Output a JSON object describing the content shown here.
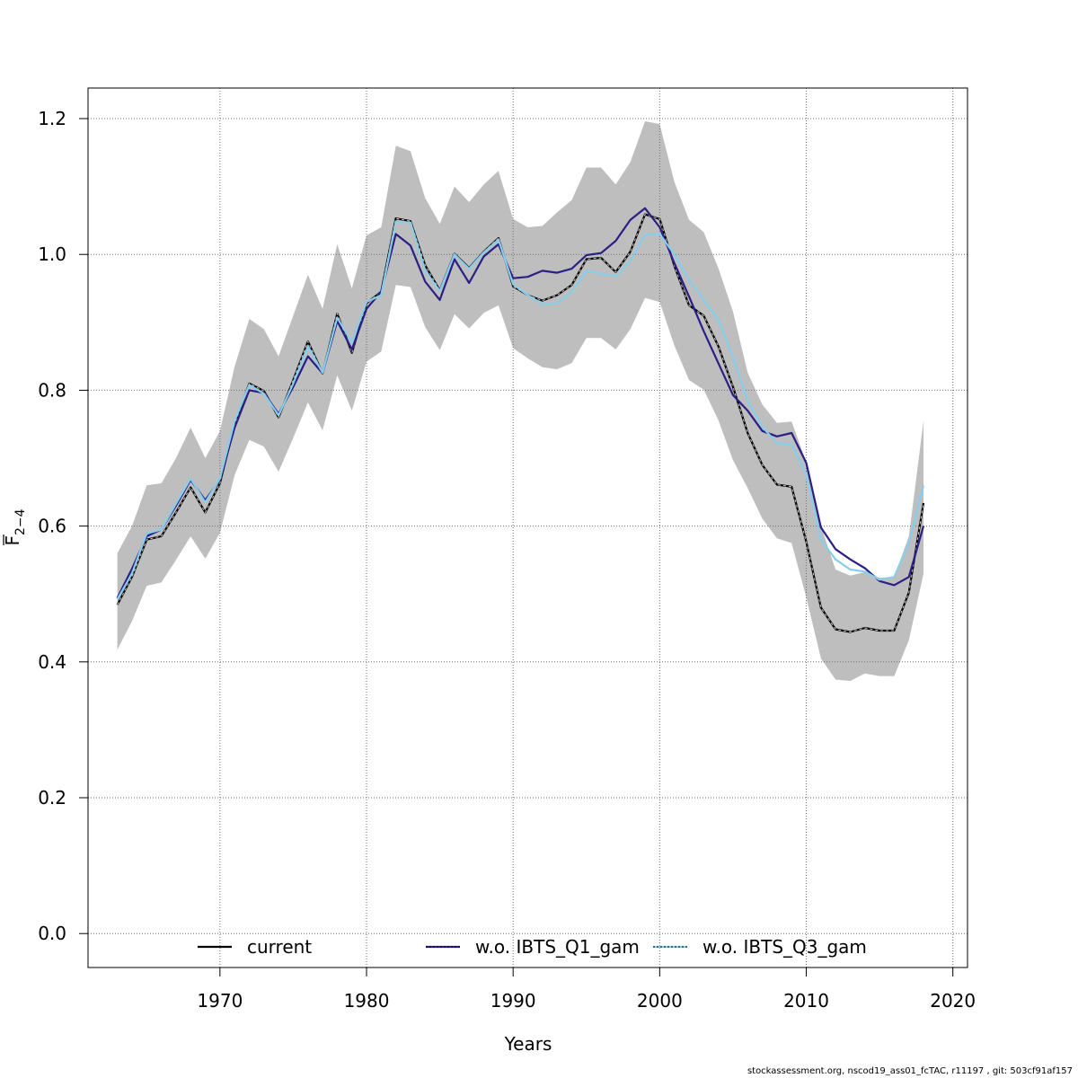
{
  "chart_data": {
    "type": "line",
    "title": "",
    "xlabel": "Years",
    "ylabel_main": "F",
    "ylabel_sub": "2−4",
    "xlim": [
      1961,
      2021
    ],
    "ylim": [
      -0.05,
      1.245
    ],
    "x_ticks": [
      1970,
      1980,
      1990,
      2000,
      2010,
      2020
    ],
    "y_ticks": [
      0.0,
      0.2,
      0.4,
      0.6,
      0.8,
      1.0,
      1.2
    ],
    "y_tick_labels": [
      "0.0",
      "0.2",
      "0.4",
      "0.6",
      "0.8",
      "1.0",
      "1.2"
    ],
    "grid": true,
    "legend_position": "bottom",
    "x": [
      1963,
      1964,
      1965,
      1966,
      1967,
      1968,
      1969,
      1970,
      1971,
      1972,
      1973,
      1974,
      1975,
      1976,
      1977,
      1978,
      1979,
      1980,
      1981,
      1982,
      1983,
      1984,
      1985,
      1986,
      1987,
      1988,
      1989,
      1990,
      1991,
      1992,
      1993,
      1994,
      1995,
      1996,
      1997,
      1998,
      1999,
      2000,
      2001,
      2002,
      2003,
      2004,
      2005,
      2006,
      2007,
      2008,
      2009,
      2010,
      2011,
      2012,
      2013,
      2014,
      2015,
      2016,
      2017,
      2018
    ],
    "confidence_band": {
      "color": "#bebebe",
      "upper": [
        0.56,
        0.6,
        0.66,
        0.663,
        0.7,
        0.745,
        0.7,
        0.74,
        0.835,
        0.905,
        0.89,
        0.85,
        0.91,
        0.97,
        0.92,
        1.015,
        0.95,
        1.028,
        1.04,
        1.16,
        1.152,
        1.083,
        1.045,
        1.1,
        1.077,
        1.103,
        1.123,
        1.052,
        1.04,
        1.042,
        1.062,
        1.08,
        1.128,
        1.128,
        1.103,
        1.136,
        1.196,
        1.192,
        1.107,
        1.051,
        1.033,
        0.98,
        0.916,
        0.826,
        0.779,
        0.752,
        0.754,
        0.694,
        0.6,
        0.536,
        0.527,
        0.532,
        0.524,
        0.525,
        0.585,
        0.755
      ],
      "lower": [
        0.418,
        0.46,
        0.512,
        0.517,
        0.55,
        0.585,
        0.552,
        0.59,
        0.675,
        0.727,
        0.717,
        0.68,
        0.73,
        0.782,
        0.741,
        0.822,
        0.77,
        0.842,
        0.857,
        0.955,
        0.952,
        0.893,
        0.859,
        0.912,
        0.891,
        0.914,
        0.925,
        0.862,
        0.847,
        0.834,
        0.831,
        0.84,
        0.877,
        0.877,
        0.86,
        0.89,
        0.936,
        0.93,
        0.866,
        0.815,
        0.801,
        0.756,
        0.697,
        0.656,
        0.611,
        0.582,
        0.575,
        0.495,
        0.405,
        0.374,
        0.372,
        0.383,
        0.379,
        0.379,
        0.432,
        0.53
      ]
    },
    "series": [
      {
        "name": "current",
        "color": "#000000",
        "dash": "none",
        "values": [
          0.484,
          0.525,
          0.58,
          0.585,
          0.62,
          0.657,
          0.62,
          0.663,
          0.75,
          0.81,
          0.799,
          0.76,
          0.815,
          0.872,
          0.825,
          0.913,
          0.855,
          0.928,
          0.945,
          1.053,
          1.049,
          0.984,
          0.947,
          1.001,
          0.98,
          1.004,
          1.024,
          0.953,
          0.94,
          0.932,
          0.94,
          0.955,
          0.993,
          0.995,
          0.974,
          1.004,
          1.059,
          1.052,
          0.983,
          0.925,
          0.91,
          0.865,
          0.805,
          0.737,
          0.69,
          0.661,
          0.658,
          0.577,
          0.48,
          0.448,
          0.444,
          0.45,
          0.446,
          0.446,
          0.502,
          0.634
        ]
      },
      {
        "name": "w.o. IBTS_Q1_gam",
        "color": "#2b1f86",
        "dash": "none",
        "values": [
          0.494,
          0.537,
          0.585,
          0.595,
          0.63,
          0.668,
          0.638,
          0.668,
          0.745,
          0.8,
          0.796,
          0.765,
          0.805,
          0.85,
          0.825,
          0.902,
          0.86,
          0.92,
          0.945,
          1.03,
          1.013,
          0.96,
          0.933,
          0.993,
          0.958,
          0.997,
          1.015,
          0.965,
          0.967,
          0.976,
          0.973,
          0.979,
          0.999,
          1.002,
          1.02,
          1.051,
          1.068,
          1.04,
          0.987,
          0.938,
          0.887,
          0.84,
          0.793,
          0.77,
          0.74,
          0.732,
          0.737,
          0.693,
          0.598,
          0.566,
          0.551,
          0.538,
          0.519,
          0.513,
          0.525,
          0.6
        ]
      },
      {
        "name": "w.o. IBTS_Q3_gam",
        "color": "#87ceeb",
        "dash": "none",
        "values": [
          0.492,
          0.53,
          0.589,
          0.595,
          0.633,
          0.67,
          0.635,
          0.67,
          0.755,
          0.808,
          0.795,
          0.763,
          0.81,
          0.865,
          0.826,
          0.907,
          0.87,
          0.93,
          0.94,
          1.048,
          1.047,
          0.976,
          0.946,
          1.0,
          0.979,
          1.003,
          1.022,
          0.956,
          0.94,
          0.927,
          0.928,
          0.945,
          0.976,
          0.972,
          0.968,
          0.99,
          1.029,
          1.03,
          1.0,
          0.962,
          0.933,
          0.904,
          0.848,
          0.784,
          0.746,
          0.722,
          0.72,
          0.675,
          0.58,
          0.551,
          0.536,
          0.533,
          0.521,
          0.525,
          0.575,
          0.66
        ]
      }
    ],
    "legend": [
      {
        "label": "current",
        "color": "#000000"
      },
      {
        "label": "w.o. IBTS_Q1_gam",
        "color": "#2b1f86"
      },
      {
        "label": "w.o. IBTS_Q3_gam",
        "color": "#87ceeb"
      }
    ]
  },
  "footer": "stockassessment.org, nscod19_ass01_fcTAC, r11197 , git: 503cf91af157"
}
